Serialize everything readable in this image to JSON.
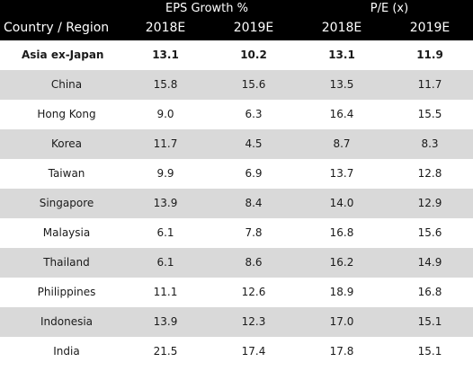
{
  "header": {
    "group_eps": "EPS Growth %",
    "group_pe": "P/E (x)",
    "col_country": "Country / Region",
    "col_eps_2018": "2018E",
    "col_eps_2019": "2019E",
    "col_pe_2018": "2018E",
    "col_pe_2019": "2019E"
  },
  "rows": [
    {
      "name": "Asia ex-Japan",
      "v1": "13.1",
      "v2": "10.2",
      "v3": "13.1",
      "v4": "11.9"
    },
    {
      "name": "China",
      "v1": "15.8",
      "v2": "15.6",
      "v3": "13.5",
      "v4": "11.7"
    },
    {
      "name": "Hong Kong",
      "v1": "9.0",
      "v2": "6.3",
      "v3": "16.4",
      "v4": "15.5"
    },
    {
      "name": "Korea",
      "v1": "11.7",
      "v2": "4.5",
      "v3": "8.7",
      "v4": "8.3"
    },
    {
      "name": "Taiwan",
      "v1": "9.9",
      "v2": "6.9",
      "v3": "13.7",
      "v4": "12.8"
    },
    {
      "name": "Singapore",
      "v1": "13.9",
      "v2": "8.4",
      "v3": "14.0",
      "v4": "12.9"
    },
    {
      "name": "Malaysia",
      "v1": "6.1",
      "v2": "7.8",
      "v3": "16.8",
      "v4": "15.6"
    },
    {
      "name": "Thailand",
      "v1": "6.1",
      "v2": "8.6",
      "v3": "16.2",
      "v4": "14.9"
    },
    {
      "name": "Philippines",
      "v1": "11.1",
      "v2": "12.6",
      "v3": "18.9",
      "v4": "16.8"
    },
    {
      "name": "Indonesia",
      "v1": "13.9",
      "v2": "12.3",
      "v3": "17.0",
      "v4": "15.1"
    },
    {
      "name": "India",
      "v1": "21.5",
      "v2": "17.4",
      "v3": "17.8",
      "v4": "15.1"
    }
  ]
}
